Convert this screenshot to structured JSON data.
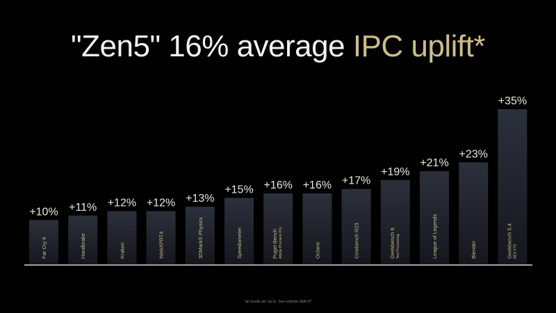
{
  "title": {
    "main": "\"Zen5\" 16% average ",
    "accent": "IPC uplift*"
  },
  "colors": {
    "accent": "#cdbd8c",
    "bar_top": "#2c303b",
    "bar_bottom": "#161820",
    "label": "#c9bb86",
    "value": "#e8e8e0"
  },
  "footnote": "*all results are 'up to'. See endnote GNR-07",
  "chart_data": {
    "type": "bar",
    "title": "\"Zen5\" 16% average IPC uplift*",
    "categories": [
      {
        "name": "Far Cry 6",
        "sub": ""
      },
      {
        "name": "Handbrake",
        "sub": ""
      },
      {
        "name": "Kraken",
        "sub": ""
      },
      {
        "name": "WebXPRT4",
        "sub": ""
      },
      {
        "name": "3DMark® Physics",
        "sub": ""
      },
      {
        "name": "Speedometer",
        "sub": ""
      },
      {
        "name": "Puget Bench",
        "sub": "Adobe Premiere Pro"
      },
      {
        "name": "Octane",
        "sub": ""
      },
      {
        "name": "Cinebench R23",
        "sub": ""
      },
      {
        "name": "Geekbench 6",
        "sub": "Text Processing"
      },
      {
        "name": "League of Legends",
        "sub": ""
      },
      {
        "name": "Blender",
        "sub": ""
      },
      {
        "name": "Geekbench 5.4",
        "sub": "AES XTS"
      }
    ],
    "values": [
      10,
      11,
      12,
      12,
      13,
      15,
      16,
      16,
      17,
      19,
      21,
      23,
      35
    ],
    "value_labels": [
      "+10%",
      "+11%",
      "+12%",
      "+12%",
      "+13%",
      "+15%",
      "+16%",
      "+16%",
      "+17%",
      "+19%",
      "+21%",
      "+23%",
      "+35%"
    ],
    "ylim": [
      0,
      35
    ],
    "grid": false,
    "legend": "none"
  }
}
